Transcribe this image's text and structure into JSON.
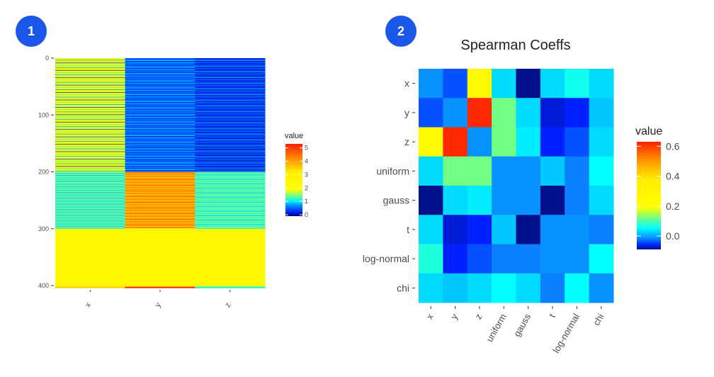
{
  "badges": [
    "1",
    "2"
  ],
  "chart_data": [
    {
      "type": "heatmap",
      "title": "",
      "xlabel": "",
      "ylabel": "",
      "x_categories": [
        "x",
        "y",
        "z"
      ],
      "y_ticks": [
        "0",
        "100",
        "200",
        "300",
        "400"
      ],
      "ylim": [
        0,
        404
      ],
      "y_reversed": true,
      "legend": {
        "title": "value",
        "ticks": [
          "0",
          "1",
          "2",
          "3",
          "4",
          "5"
        ],
        "range": [
          -0.1,
          5.3
        ],
        "placement": "right"
      },
      "columns": [
        {
          "name": "x",
          "segments": [
            {
              "rows": [
                0,
                200
              ],
              "values": [
                2.6,
                1.8,
                2.4,
                0.8,
                2.7,
                1.6,
                2.5,
                2.2,
                0.3,
                2.6,
                1.9,
                2.4,
                1.2
              ]
            },
            {
              "rows": [
                200,
                300
              ],
              "values": [
                1.2,
                1.5,
                0.9,
                1.4,
                1.1,
                1.6,
                0.8,
                1.3,
                1.5,
                1.0
              ]
            },
            {
              "rows": [
                300,
                402
              ],
              "values": [
                2.6,
                2.6,
                2.7,
                2.6,
                2.6
              ]
            },
            {
              "rows": [
                402,
                404
              ],
              "values": [
                3.6
              ]
            }
          ]
        },
        {
          "name": "y",
          "segments": [
            {
              "rows": [
                0,
                200
              ],
              "values": [
                0.5,
                0.2,
                0.8,
                0.4,
                1.0,
                0.1,
                0.6,
                0.3,
                0.9,
                0.5,
                0.2,
                0.7
              ]
            },
            {
              "rows": [
                200,
                300
              ],
              "values": [
                3.8,
                4.5,
                3.5,
                4.9,
                4.0,
                3.3,
                4.3,
                3.7,
                4.7,
                3.2
              ]
            },
            {
              "rows": [
                300,
                402
              ],
              "values": [
                2.7
              ]
            },
            {
              "rows": [
                402,
                404
              ],
              "values": [
                5.3
              ]
            }
          ]
        },
        {
          "name": "z",
          "segments": [
            {
              "rows": [
                0,
                200
              ],
              "values": [
                0.3,
                0.1,
                0.6,
                0.2,
                0.9,
                0.0,
                0.4,
                0.2,
                0.7,
                0.1
              ]
            },
            {
              "rows": [
                200,
                300
              ],
              "values": [
                1.4,
                1.1,
                1.6,
                1.0,
                1.3,
                0.9,
                1.5,
                1.2
              ]
            },
            {
              "rows": [
                300,
                402
              ],
              "values": [
                2.6
              ]
            },
            {
              "rows": [
                402,
                404
              ],
              "values": [
                1.0
              ]
            }
          ]
        }
      ]
    },
    {
      "type": "heatmap",
      "title": "Spearman Coeffs",
      "xlabel": "",
      "ylabel": "",
      "categories": [
        "x",
        "y",
        "z",
        "uniform",
        "gauss",
        "t",
        "log-normal",
        "chi"
      ],
      "legend": {
        "title": "value",
        "ticks": [
          "0.0",
          "0.2",
          "0.4",
          "0.6"
        ],
        "range": [
          -0.09,
          0.63
        ],
        "placement": "right"
      },
      "matrix": [
        [
          -0.01,
          -0.04,
          0.25,
          0.03,
          -0.09,
          0.03,
          0.06,
          0.03
        ],
        [
          -0.04,
          -0.01,
          0.62,
          0.12,
          0.03,
          -0.07,
          -0.06,
          0.02
        ],
        [
          0.25,
          0.62,
          -0.01,
          0.12,
          0.04,
          -0.06,
          -0.04,
          0.03
        ],
        [
          0.03,
          0.12,
          0.12,
          -0.01,
          -0.01,
          0.02,
          -0.02,
          0.05
        ],
        [
          -0.09,
          0.03,
          0.04,
          -0.01,
          -0.01,
          -0.09,
          -0.02,
          0.03
        ],
        [
          0.03,
          -0.07,
          -0.06,
          0.02,
          -0.09,
          -0.01,
          -0.01,
          -0.02
        ],
        [
          0.07,
          -0.06,
          -0.04,
          -0.02,
          -0.02,
          -0.01,
          -0.01,
          0.05
        ],
        [
          0.03,
          0.02,
          0.03,
          0.05,
          0.03,
          -0.02,
          0.05,
          -0.01
        ]
      ]
    }
  ]
}
